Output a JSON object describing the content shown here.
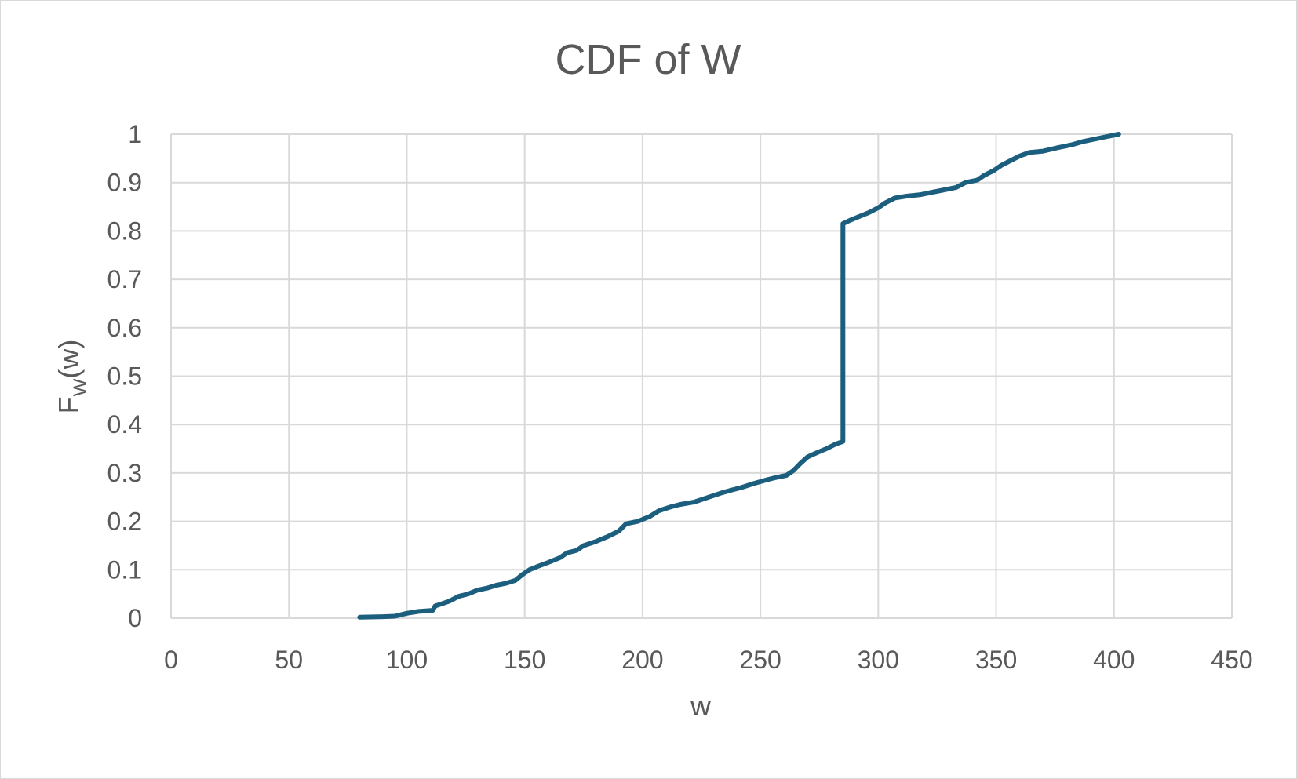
{
  "chart_data": {
    "type": "line",
    "title": "CDF of W",
    "xlabel": "w",
    "ylabel": {
      "main": "F",
      "subscript": "W",
      "suffix": "(w)"
    },
    "xlim": [
      0,
      450
    ],
    "ylim": [
      0,
      1
    ],
    "x_ticks": [
      0,
      50,
      100,
      150,
      200,
      250,
      300,
      350,
      400,
      450
    ],
    "y_ticks": [
      0,
      0.1,
      0.2,
      0.3,
      0.4,
      0.5,
      0.6,
      0.7,
      0.8,
      0.9,
      1
    ],
    "grid": true,
    "legend": "none",
    "colors": {
      "line": "#1b5e7e",
      "grid": "#d9d9d9",
      "text": "#595959"
    },
    "series": [
      {
        "name": "CDF",
        "points": [
          [
            80,
            0.002
          ],
          [
            90,
            0.003
          ],
          [
            95,
            0.004
          ],
          [
            100,
            0.01
          ],
          [
            105,
            0.014
          ],
          [
            111,
            0.016
          ],
          [
            112,
            0.025
          ],
          [
            118,
            0.035
          ],
          [
            122,
            0.045
          ],
          [
            126,
            0.05
          ],
          [
            130,
            0.058
          ],
          [
            134,
            0.062
          ],
          [
            138,
            0.068
          ],
          [
            142,
            0.072
          ],
          [
            146,
            0.078
          ],
          [
            149,
            0.09
          ],
          [
            152,
            0.1
          ],
          [
            155,
            0.106
          ],
          [
            160,
            0.115
          ],
          [
            165,
            0.125
          ],
          [
            168,
            0.135
          ],
          [
            172,
            0.14
          ],
          [
            175,
            0.15
          ],
          [
            180,
            0.158
          ],
          [
            185,
            0.168
          ],
          [
            190,
            0.18
          ],
          [
            193,
            0.195
          ],
          [
            198,
            0.2
          ],
          [
            203,
            0.21
          ],
          [
            207,
            0.222
          ],
          [
            212,
            0.23
          ],
          [
            216,
            0.235
          ],
          [
            222,
            0.24
          ],
          [
            228,
            0.25
          ],
          [
            233,
            0.258
          ],
          [
            238,
            0.265
          ],
          [
            242,
            0.27
          ],
          [
            247,
            0.278
          ],
          [
            252,
            0.285
          ],
          [
            256,
            0.29
          ],
          [
            261,
            0.295
          ],
          [
            264,
            0.305
          ],
          [
            267,
            0.32
          ],
          [
            270,
            0.333
          ],
          [
            274,
            0.342
          ],
          [
            278,
            0.35
          ],
          [
            282,
            0.36
          ],
          [
            285,
            0.365
          ],
          [
            285,
            0.815
          ],
          [
            288,
            0.822
          ],
          [
            292,
            0.83
          ],
          [
            296,
            0.838
          ],
          [
            300,
            0.848
          ],
          [
            303,
            0.858
          ],
          [
            307,
            0.868
          ],
          [
            312,
            0.872
          ],
          [
            318,
            0.875
          ],
          [
            323,
            0.88
          ],
          [
            328,
            0.885
          ],
          [
            333,
            0.89
          ],
          [
            337,
            0.9
          ],
          [
            342,
            0.905
          ],
          [
            345,
            0.915
          ],
          [
            349,
            0.925
          ],
          [
            352,
            0.935
          ],
          [
            356,
            0.945
          ],
          [
            360,
            0.955
          ],
          [
            364,
            0.962
          ],
          [
            370,
            0.965
          ],
          [
            376,
            0.972
          ],
          [
            382,
            0.978
          ],
          [
            387,
            0.985
          ],
          [
            392,
            0.99
          ],
          [
            397,
            0.995
          ],
          [
            402,
            1.0
          ]
        ]
      }
    ]
  }
}
